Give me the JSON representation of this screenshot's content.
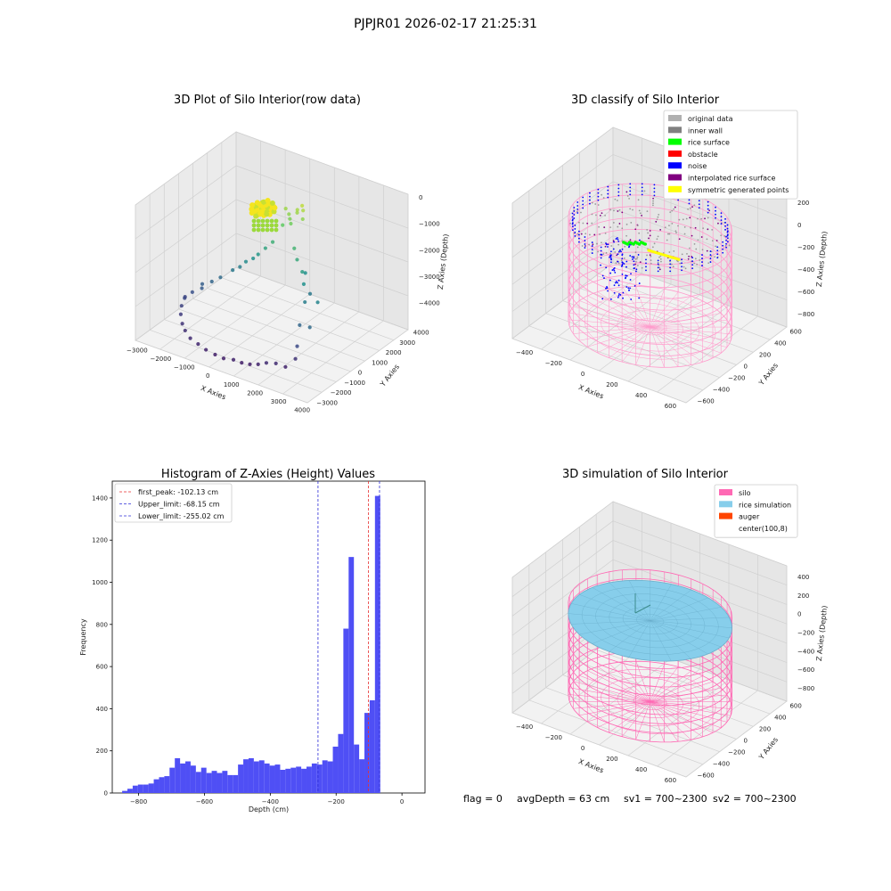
{
  "figure": {
    "suptitle": "PJPJR01 2026-02-17 21:25:31",
    "status": {
      "flag": "flag = 0",
      "avg_depth": "avgDepth = 63 cm",
      "sv1": "sv1 = 700~2300",
      "sv2": "sv2 = 700~2300"
    }
  },
  "colors": {
    "hist_bar": "#4f4ff5",
    "first_peak_line": "#e83030",
    "limit_lines": "#2d2dd8",
    "silo": "#ff69b4",
    "rice_simulation": "#87ceeb",
    "auger": "#ff4500",
    "original_data": "#b0b0b0",
    "inner_wall": "#808080",
    "rice_surface": "#00ff00",
    "obstacle": "#ff0000",
    "noise": "#0000ff",
    "interpolated_rice_surface": "#800080",
    "symmetric_generated_points": "#ffff00"
  },
  "chart_data": [
    {
      "type": "scatter",
      "title": "3D Plot of Silo Interior(row data)",
      "xlabel": "X Axies",
      "ylabel": "Y Axies",
      "zlabel": "Z Axies (Depth)",
      "x_ticks": [
        "−3000",
        "−2000",
        "−1000",
        "0",
        "1000",
        "2000",
        "3000",
        "4000"
      ],
      "y_ticks": [
        "−3000",
        "−2000",
        "−1000",
        "0",
        "1000",
        "2000",
        "3000",
        "4000"
      ],
      "z_ticks": [
        "0",
        "−1000",
        "−2000",
        "−3000",
        "−4000"
      ],
      "xlim": [
        -3300,
        4200
      ],
      "ylim": [
        -3300,
        4200
      ],
      "zlim": [
        -4300,
        300
      ],
      "colormap": "viridis",
      "points": [
        [
          2600,
          -2200,
          -3900
        ],
        [
          2300,
          -2400,
          -3800
        ],
        [
          2000,
          -2600,
          -3800
        ],
        [
          1700,
          -2700,
          -3900
        ],
        [
          1400,
          -2800,
          -3950
        ],
        [
          1100,
          -2900,
          -3950
        ],
        [
          800,
          -3000,
          -3900
        ],
        [
          400,
          -3050,
          -3950
        ],
        [
          0,
          -3000,
          -3950
        ],
        [
          -400,
          -3000,
          -3900
        ],
        [
          -800,
          -2900,
          -3850
        ],
        [
          -1200,
          -2800,
          -3800
        ],
        [
          -1600,
          -2500,
          -3750
        ],
        [
          -1900,
          -2200,
          -3700
        ],
        [
          -2200,
          -1800,
          -3600
        ],
        [
          -2400,
          -1400,
          -3500
        ],
        [
          -2500,
          -1000,
          -3400
        ],
        [
          -2400,
          -600,
          -3300
        ],
        [
          -2200,
          -200,
          -3100
        ],
        [
          -2600,
          -800,
          -3450
        ],
        [
          2800,
          -1800,
          -3700
        ],
        [
          2700,
          -1500,
          -3400
        ],
        [
          2400,
          -800,
          -3000
        ],
        [
          2100,
          100,
          -2600
        ],
        [
          1700,
          700,
          -2300
        ],
        [
          1400,
          1100,
          -2100
        ],
        [
          2900,
          -900,
          -2900
        ],
        [
          2600,
          200,
          -2500
        ],
        [
          -1700,
          300,
          -2900
        ],
        [
          -1400,
          700,
          -2700
        ],
        [
          -1000,
          1000,
          -2400
        ],
        [
          -700,
          1400,
          -2200
        ],
        [
          -500,
          1600,
          -2000
        ],
        [
          -300,
          1800,
          -1800
        ],
        [
          -1900,
          0,
          -3000
        ],
        [
          -2100,
          -400,
          -3150
        ],
        [
          -800,
          1200,
          -2300
        ],
        [
          -1200,
          900,
          -2600
        ],
        [
          1000,
          1400,
          -1900
        ],
        [
          700,
          1700,
          -1700
        ],
        [
          -100,
          2200,
          -1300
        ],
        [
          100,
          2400,
          -1100
        ],
        [
          300,
          2600,
          -900
        ],
        [
          500,
          2700,
          -800
        ],
        [
          0,
          2500,
          -1000
        ],
        [
          200,
          2300,
          -1200
        ],
        [
          600,
          2500,
          -1000
        ],
        [
          -200,
          2600,
          -900
        ],
        [
          400,
          2800,
          -700
        ],
        [
          250,
          2700,
          -850
        ],
        [
          1300,
          1500,
          -2300
        ],
        [
          1800,
          1000,
          -2700
        ]
      ]
    },
    {
      "type": "scatter",
      "title": "3D classify of Silo Interior",
      "xlabel": "X Axies",
      "ylabel": "Y Axies",
      "zlabel": "Z Axies (Depth)",
      "x_ticks": [
        "−400",
        "−200",
        "0",
        "200",
        "400",
        "600"
      ],
      "y_ticks": [
        "−600",
        "−400",
        "−200",
        "0",
        "200",
        "400",
        "600"
      ],
      "z_ticks": [
        "200",
        "0",
        "−200",
        "−400",
        "−600",
        "−800"
      ],
      "xlim": [
        -550,
        750
      ],
      "ylim": [
        -650,
        650
      ],
      "zlim": [
        -950,
        300
      ],
      "legend_position": "top-right",
      "legend": [
        {
          "label": "original data",
          "color": "#b0b0b0"
        },
        {
          "label": "inner wall",
          "color": "#808080"
        },
        {
          "label": "rice surface",
          "color": "#00ff00"
        },
        {
          "label": "obstacle",
          "color": "#ff0000"
        },
        {
          "label": "noise",
          "color": "#0000ff"
        },
        {
          "label": "interpolated rice surface",
          "color": "#800080"
        },
        {
          "label": "symmetric generated points",
          "color": "#ffff00"
        }
      ],
      "silo": {
        "center": [
          100,
          8
        ],
        "radius": 530,
        "z_top": 50,
        "z_bottom": -900
      }
    },
    {
      "type": "bar",
      "title": "Histogram of Z-Axies (Height) Values",
      "xlabel": "Depth (cm)",
      "ylabel": "Frequency",
      "xlim": [
        -880,
        70
      ],
      "ylim": [
        0,
        1480
      ],
      "x_ticks": [
        -800,
        -600,
        -400,
        -200,
        0
      ],
      "y_ticks": [
        0,
        200,
        400,
        600,
        800,
        1000,
        1200,
        1400
      ],
      "bin_width": 16,
      "bin_start": -850,
      "values": [
        10,
        20,
        35,
        40,
        40,
        45,
        65,
        75,
        80,
        120,
        165,
        140,
        150,
        130,
        100,
        120,
        95,
        105,
        95,
        105,
        85,
        85,
        135,
        160,
        165,
        150,
        155,
        140,
        130,
        135,
        110,
        115,
        120,
        125,
        115,
        125,
        140,
        135,
        155,
        150,
        220,
        280,
        780,
        1120,
        230,
        160,
        380,
        440,
        1410
      ],
      "vlines": [
        {
          "label": "first_peak: -102.13 cm",
          "x": -102.13,
          "color": "#e83030"
        },
        {
          "label": "Upper_limit: -68.15 cm",
          "x": -68.15,
          "color": "#2d2dd8"
        },
        {
          "label": "Lower_limit: -255.02 cm",
          "x": -255.02,
          "color": "#2d2dd8"
        }
      ],
      "legend_position": "top-left"
    },
    {
      "type": "area",
      "title": "3D simulation of Silo Interior",
      "xlabel": "X Axies",
      "ylabel": "Y Axies",
      "zlabel": "Z Axies (Depth)",
      "x_ticks": [
        "−400",
        "−200",
        "0",
        "200",
        "400",
        "600"
      ],
      "y_ticks": [
        "−600",
        "−400",
        "−200",
        "0",
        "200",
        "400",
        "600"
      ],
      "z_ticks": [
        "400",
        "200",
        "0",
        "−200",
        "−400",
        "−600",
        "−800"
      ],
      "xlim": [
        -550,
        750
      ],
      "ylim": [
        -650,
        650
      ],
      "zlim": [
        -950,
        450
      ],
      "legend_position": "top-right",
      "legend": [
        {
          "label": "silo",
          "color": "#ff69b4"
        },
        {
          "label": "rice simulation",
          "color": "#87ceeb"
        },
        {
          "label": "auger",
          "color": "#ff4500"
        },
        {
          "label": "center(100,8)",
          "color": "#ffffff"
        }
      ],
      "silo": {
        "center": [
          100,
          8
        ],
        "radius": 530,
        "z_top": 50,
        "z_bottom": -900
      },
      "rice_surface_z": -63
    }
  ]
}
